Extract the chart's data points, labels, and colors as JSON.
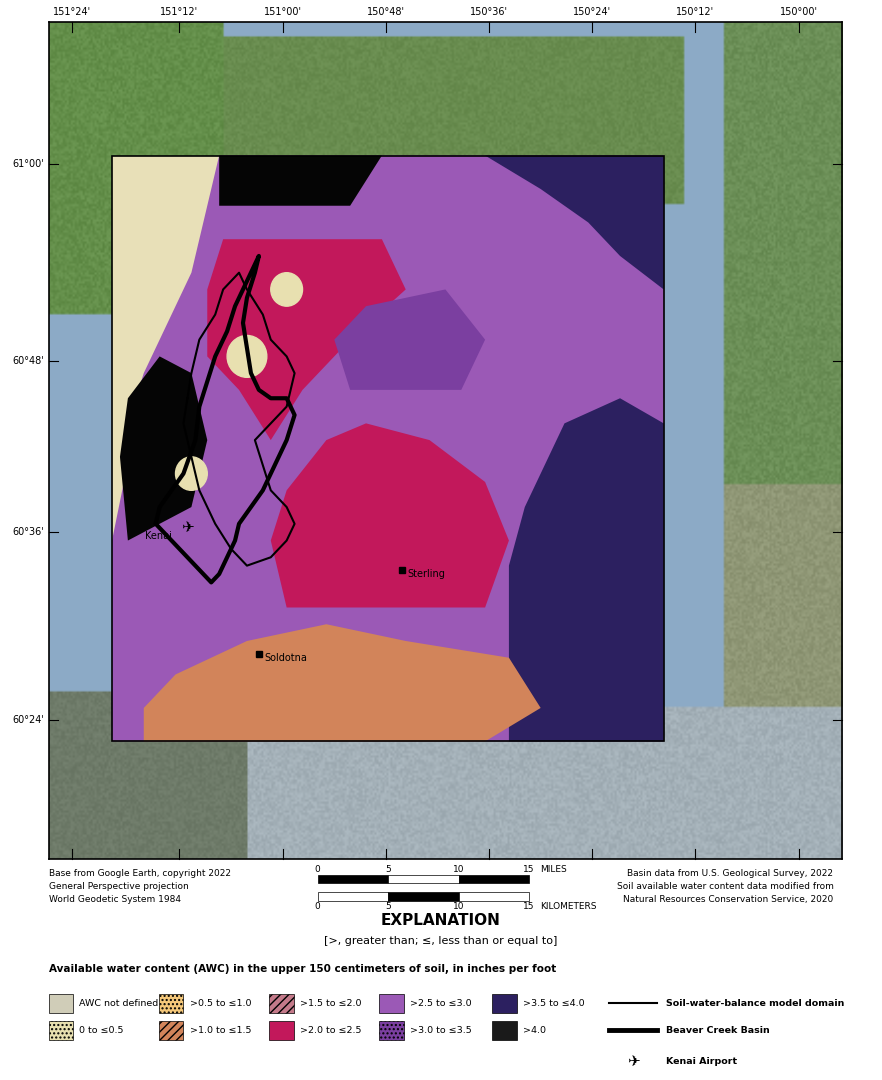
{
  "title": "EXPLANATION",
  "subtitle": "[>, greater than; ≤, less than or equal to]",
  "map_left_text": [
    "Base from Google Earth, copyright 2022",
    "General Perspective projection",
    "World Geodetic System 1984"
  ],
  "map_right_text": [
    "Basin data from U.S. Geological Survey, 2022",
    "Soil available water content data modified from",
    "Natural Resources Conservation Service, 2020"
  ],
  "awc_header": "Available water content (AWC) in the upper 150 centimeters of soil, in inches per foot",
  "lat_ticks": [
    "61°00'",
    "60°48'",
    "60°36'",
    "60°24'"
  ],
  "lon_ticks": [
    "151°24'",
    "151°12'",
    "151°00'",
    "150°48'",
    "150°36'",
    "150°24'",
    "150°12'",
    "150°00'"
  ],
  "label_kenai": "Kenai",
  "label_soldotna": "Soldotna",
  "label_sterling": "Sterling",
  "background_color": "#ffffff",
  "sat_water_color": "#8da8c8",
  "sat_land_green": "#6b8a5a",
  "sat_land_dark": "#4a6040",
  "sat_glacier": "#b0c8d0",
  "sat_tan": "#c8b88a",
  "domain_bg_tan": "#e8e0b8",
  "awc_colors": {
    "not_defined": "#d0cdb8",
    "0_05": "#e8e0b0",
    "05_10": "#f5c87a",
    "10_15": "#d2845a",
    "15_20": "#c47a8a",
    "20_25": "#c2185b",
    "25_30": "#9b59b6",
    "30_35": "#7b3fa0",
    "35_40": "#2c2060",
    "gt40": "#1a1a1a",
    "black": "#050505"
  },
  "legend_row1": [
    {
      "color": "#d0cdb8",
      "hatch": null,
      "label": "AWC not defined"
    },
    {
      "color": "#f5c87a",
      "hatch": "light_dot",
      "label": ">0.5 to ≤1.0"
    },
    {
      "color": "#c47a8a",
      "hatch": "cross_hatch",
      "label": ">1.5 to ≤2.0"
    },
    {
      "color": "#9b59b6",
      "hatch": null,
      "label": ">2.5 to ≤3.0"
    },
    {
      "color": "#2c2060",
      "hatch": null,
      "label": ">3.5 to ≤4.0"
    }
  ],
  "legend_row2": [
    {
      "color": "#e8e0b0",
      "hatch": "dot",
      "label": "0 to ≤0.5"
    },
    {
      "color": "#d2845a",
      "hatch": "diag",
      "label": ">1.0 to ≤1.5"
    },
    {
      "color": "#c2185b",
      "hatch": null,
      "label": ">2.0 to ≤2.5"
    },
    {
      "color": "#7b3fa0",
      "hatch": "dot2",
      "label": ">3.0 to ≤3.5"
    },
    {
      "color": "#1a1a1a",
      "hatch": null,
      "label": ">4.0"
    }
  ]
}
